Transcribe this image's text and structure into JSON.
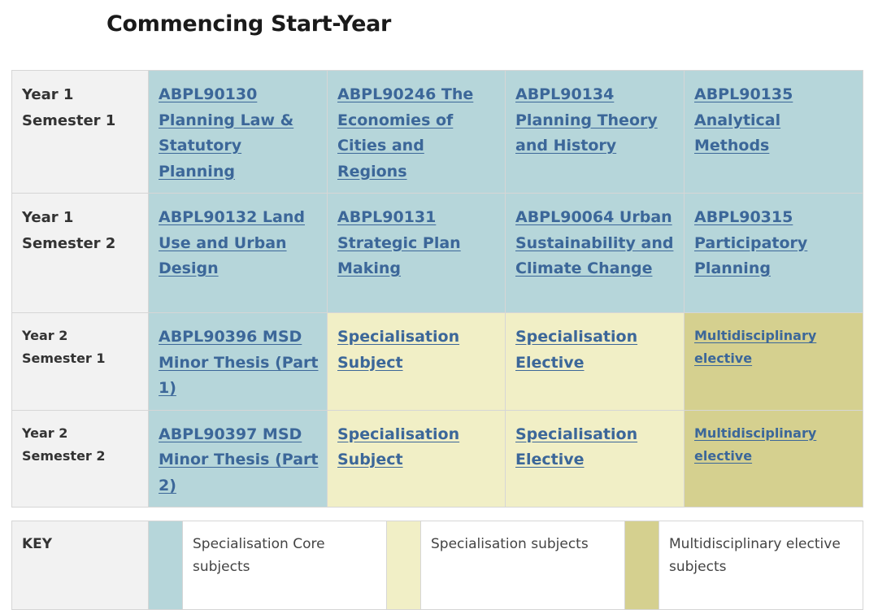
{
  "title": "Commencing Start-Year",
  "rows": [
    {
      "year": "Year 1",
      "semester": "Semester 1",
      "cells": [
        {
          "text": "ABPL90130 Planning Law & Statutory Planning",
          "kind": "core"
        },
        {
          "text": "ABPL90246 The Economies of Cities and Regions",
          "kind": "core"
        },
        {
          "text": "ABPL90134 Planning Theory and History",
          "kind": "core"
        },
        {
          "text": "ABPL90135 Analytical Methods",
          "kind": "core"
        }
      ]
    },
    {
      "year": "Year 1",
      "semester": "Semester 2",
      "cells": [
        {
          "text": "ABPL90132 Land Use and Urban Design",
          "kind": "core"
        },
        {
          "text": "ABPL90131 Strategic Plan Making",
          "kind": "core"
        },
        {
          "text": "ABPL90064 Urban Sustainability and Climate Change",
          "kind": "core"
        },
        {
          "text": "ABPL90315 Participatory Planning",
          "kind": "core"
        }
      ]
    },
    {
      "year": "Year 2",
      "semester": "Semester 1",
      "cells": [
        {
          "text": "ABPL90396 MSD Minor Thesis (Part 1)",
          "kind": "core"
        },
        {
          "text": "Specialisation Subject",
          "kind": "spec"
        },
        {
          "text": "Specialisation Elective",
          "kind": "spec"
        },
        {
          "text": "Multidisciplinary elective",
          "kind": "multi"
        }
      ]
    },
    {
      "year": "Year 2",
      "semester": "Semester 2",
      "cells": [
        {
          "text": "ABPL90397 MSD Minor Thesis (Part 2)",
          "kind": "core"
        },
        {
          "text": "Specialisation Subject",
          "kind": "spec"
        },
        {
          "text": "Specialisation Elective",
          "kind": "spec"
        },
        {
          "text": "Multidisciplinary elective",
          "kind": "multi"
        }
      ]
    }
  ],
  "key": {
    "label": "KEY",
    "items": [
      {
        "label": "Specialisation Core subjects",
        "color": "#b6d6da"
      },
      {
        "label": "Specialisation subjects",
        "color": "#f1efc6"
      },
      {
        "label": "Multidisciplinary elective subjects",
        "color": "#d5d08f"
      }
    ]
  },
  "colors": {
    "link": "#3c6799",
    "header_bg": "#f2f2f2"
  }
}
